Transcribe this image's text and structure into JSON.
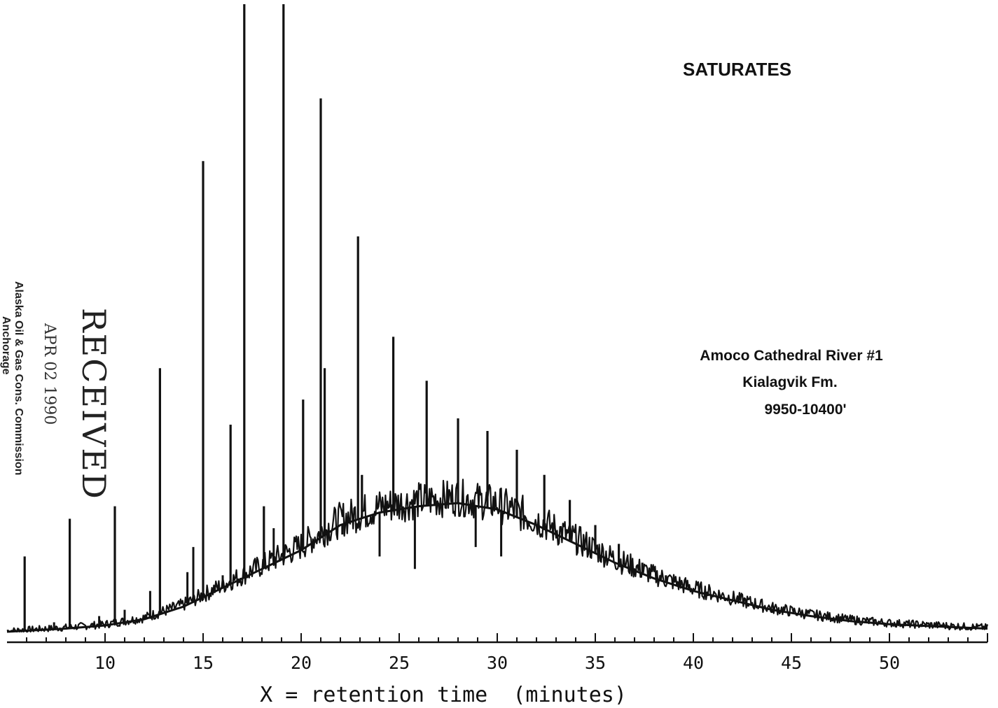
{
  "chart_data": {
    "type": "line",
    "title": "SATURATES",
    "sample_label": [
      "Amoco Cathedral River #1",
      "Kialagvik Fm.",
      "9950-10400'"
    ],
    "xlabel": "X = retention time  (minutes)",
    "ylabel": "",
    "xlim": [
      5,
      55
    ],
    "ylim": [
      0,
      100
    ],
    "x_ticks": [
      10,
      15,
      20,
      25,
      30,
      35,
      40,
      45,
      50
    ],
    "grid": false,
    "legend": "none",
    "line_color": "#111111",
    "baseline_hump": {
      "x": [
        5,
        8,
        10,
        12,
        14,
        16,
        18,
        20,
        22,
        24,
        26,
        28,
        30,
        32,
        34,
        36,
        38,
        40,
        42,
        44,
        46,
        48,
        50,
        52,
        55
      ],
      "y": [
        0,
        0.5,
        1,
        2,
        4,
        7,
        10,
        13,
        17,
        19,
        20,
        20.5,
        19.5,
        17,
        14,
        11,
        8.5,
        6.5,
        5,
        3.5,
        2.5,
        1.7,
        1.2,
        0.9,
        0.5
      ]
    },
    "major_peaks": {
      "x": [
        5.9,
        8.2,
        10.5,
        12.8,
        15.0,
        16.4,
        17.1,
        18.1,
        19.1,
        20.1,
        21.0,
        21.2,
        22.9,
        23.1,
        24.7,
        26.4,
        28.0,
        29.5,
        31.0,
        32.4,
        33.7,
        35.0,
        36.2,
        37.4,
        38.6,
        39.7,
        40.4,
        41.4
      ],
      "y": [
        12,
        18,
        20,
        42,
        75,
        33,
        100,
        20,
        100,
        37,
        85,
        42,
        63,
        25,
        47,
        40,
        34,
        32,
        29,
        25,
        21,
        17,
        14,
        11,
        9,
        7,
        6,
        5.5
      ]
    },
    "minor_peaks": {
      "x": [
        7.4,
        9.7,
        11.0,
        12.3,
        14.2,
        14.5,
        16.0,
        18.6,
        20.4,
        22.1,
        24.0,
        25.8,
        28.9,
        30.2,
        42.8,
        44.0,
        49.7
      ],
      "y": [
        1.5,
        2.5,
        3.5,
        6.5,
        9.5,
        13.5,
        9,
        16.5,
        14,
        15.5,
        12,
        10,
        13.5,
        12,
        4,
        3,
        1.5
      ]
    }
  },
  "stamp": {
    "received": "RECEIVED",
    "date": "APR 02 1990",
    "agency": "Alaska Oil & Gas Cons. Commission",
    "city": "Anchorage"
  }
}
